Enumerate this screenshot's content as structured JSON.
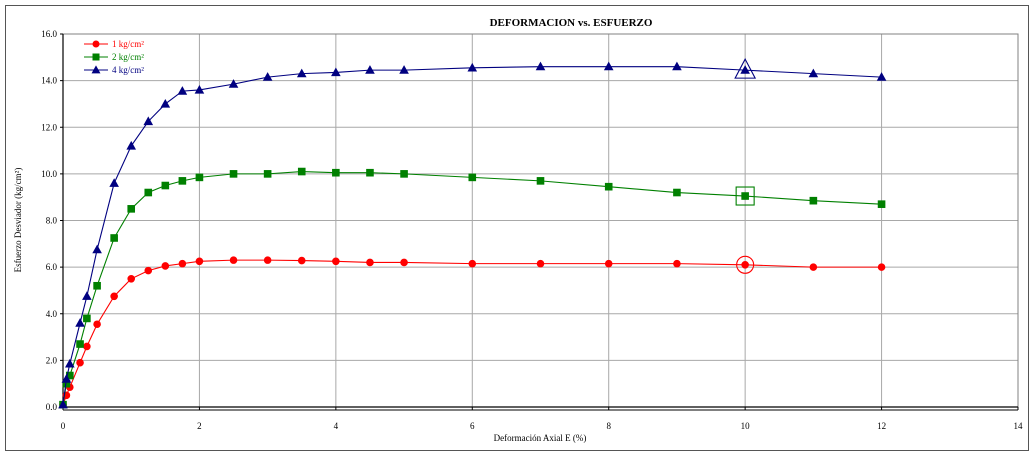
{
  "chart_data": {
    "type": "line",
    "title": "DEFORMACION vs. ESFUERZO",
    "xlabel": "Deformación Axial E (%)",
    "ylabel": "Esfuerzo Desviador (kg/cm²)",
    "xlim": [
      0,
      14
    ],
    "ylim": [
      0,
      16
    ],
    "x_ticks": [
      "0",
      "2",
      "4",
      "6",
      "8",
      "10",
      "12",
      "14"
    ],
    "y_ticks": [
      "0.0",
      "2.0",
      "4.0",
      "6.0",
      "8.0",
      "10.0",
      "12.0",
      "14.0",
      "16.0"
    ],
    "grid": true,
    "legend_position": "top-left",
    "series": [
      {
        "name": "1 kg/cm²",
        "color": "#ff0000",
        "marker": "circle",
        "peak": {
          "x": 10,
          "y": 6.1
        },
        "points": [
          [
            0,
            0.1
          ],
          [
            0.05,
            0.5
          ],
          [
            0.1,
            0.85
          ],
          [
            0.25,
            1.9
          ],
          [
            0.35,
            2.6
          ],
          [
            0.5,
            3.55
          ],
          [
            0.75,
            4.75
          ],
          [
            1.0,
            5.5
          ],
          [
            1.25,
            5.85
          ],
          [
            1.5,
            6.05
          ],
          [
            1.75,
            6.15
          ],
          [
            2.0,
            6.25
          ],
          [
            2.5,
            6.3
          ],
          [
            3.0,
            6.3
          ],
          [
            3.5,
            6.28
          ],
          [
            4.0,
            6.25
          ],
          [
            4.5,
            6.2
          ],
          [
            5.0,
            6.2
          ],
          [
            6.0,
            6.15
          ],
          [
            7.0,
            6.15
          ],
          [
            8.0,
            6.15
          ],
          [
            9.0,
            6.15
          ],
          [
            10.0,
            6.1
          ],
          [
            11.0,
            6.0
          ],
          [
            12.0,
            6.0
          ]
        ]
      },
      {
        "name": "2 kg/cm²",
        "color": "#008000",
        "marker": "square",
        "peak": {
          "x": 10,
          "y": 9.05
        },
        "points": [
          [
            0,
            0.1
          ],
          [
            0.05,
            1.0
          ],
          [
            0.1,
            1.35
          ],
          [
            0.25,
            2.7
          ],
          [
            0.35,
            3.8
          ],
          [
            0.5,
            5.2
          ],
          [
            0.75,
            7.25
          ],
          [
            1.0,
            8.5
          ],
          [
            1.25,
            9.2
          ],
          [
            1.5,
            9.5
          ],
          [
            1.75,
            9.7
          ],
          [
            2.0,
            9.85
          ],
          [
            2.5,
            10.0
          ],
          [
            3.0,
            10.0
          ],
          [
            3.5,
            10.1
          ],
          [
            4.0,
            10.05
          ],
          [
            4.5,
            10.05
          ],
          [
            5.0,
            10.0
          ],
          [
            6.0,
            9.85
          ],
          [
            7.0,
            9.7
          ],
          [
            8.0,
            9.45
          ],
          [
            9.0,
            9.2
          ],
          [
            10.0,
            9.05
          ],
          [
            11.0,
            8.85
          ],
          [
            12.0,
            8.7
          ]
        ]
      },
      {
        "name": "4 kg/cm²",
        "color": "#000080",
        "marker": "triangle",
        "peak": {
          "x": 10,
          "y": 14.45
        },
        "points": [
          [
            0,
            0.1
          ],
          [
            0.05,
            1.2
          ],
          [
            0.1,
            1.85
          ],
          [
            0.25,
            3.6
          ],
          [
            0.35,
            4.75
          ],
          [
            0.5,
            6.75
          ],
          [
            0.75,
            9.6
          ],
          [
            1.0,
            11.2
          ],
          [
            1.25,
            12.25
          ],
          [
            1.5,
            13.0
          ],
          [
            1.75,
            13.55
          ],
          [
            2.0,
            13.6
          ],
          [
            2.5,
            13.85
          ],
          [
            3.0,
            14.15
          ],
          [
            3.5,
            14.3
          ],
          [
            4.0,
            14.35
          ],
          [
            4.5,
            14.45
          ],
          [
            5.0,
            14.45
          ],
          [
            6.0,
            14.55
          ],
          [
            7.0,
            14.6
          ],
          [
            8.0,
            14.6
          ],
          [
            9.0,
            14.6
          ],
          [
            10.0,
            14.45
          ],
          [
            11.0,
            14.3
          ],
          [
            12.0,
            14.15
          ]
        ]
      }
    ]
  }
}
